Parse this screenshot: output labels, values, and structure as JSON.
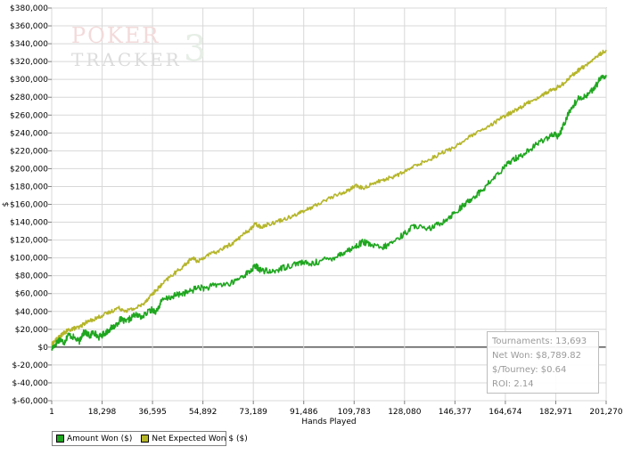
{
  "watermark": {
    "line1": "POKER",
    "line2": "TRACKER",
    "version": "3"
  },
  "stats": {
    "tournaments": "Tournaments: 13,693",
    "net_won": "Net Won: $8,789.82",
    "per_tourney": "$/Tourney: $0.64",
    "roi": "ROI: 2.14"
  },
  "legend": {
    "amount_won": "Amount Won ($)",
    "net_expected": "Net Expected Won $ ($)"
  },
  "colors": {
    "amount_won": "#1fa61f",
    "net_expected": "#b5b52a",
    "grid": "#d8d8d8",
    "zero_line": "#000000"
  },
  "chart_data": {
    "type": "line",
    "title": "",
    "xlabel": "Hands Played",
    "ylabel": "$",
    "xlim": [
      1,
      201270
    ],
    "ylim": [
      -60000,
      380000
    ],
    "x_ticks": [
      1,
      18298,
      36595,
      54892,
      73189,
      91486,
      109783,
      128080,
      146377,
      164674,
      182971,
      201270
    ],
    "x_tick_labels": [
      "1",
      "18,298",
      "36,595",
      "54,892",
      "73,189",
      "91,486",
      "109,783",
      "128,080",
      "146,377",
      "164,674",
      "182,971",
      "201,270"
    ],
    "y_ticks": [
      -60000,
      -40000,
      -20000,
      0,
      20000,
      40000,
      60000,
      80000,
      100000,
      120000,
      140000,
      160000,
      180000,
      200000,
      220000,
      240000,
      260000,
      280000,
      300000,
      320000,
      340000,
      360000,
      380000
    ],
    "y_tick_labels": [
      "$-60,000",
      "$-40,000",
      "$-20,000",
      "$0",
      "$20,000",
      "$40,000",
      "$60,000",
      "$80,000",
      "$100,000",
      "$120,000",
      "$140,000",
      "$160,000",
      "$180,000",
      "$200,000",
      "$220,000",
      "$240,000",
      "$260,000",
      "$280,000",
      "$300,000",
      "$320,000",
      "$340,000",
      "$360,000",
      "$380,000"
    ],
    "grid": true,
    "legend_position": "bottom-left",
    "series": [
      {
        "name": "Amount Won ($)",
        "color": "#1fa61f",
        "x": [
          1,
          1500,
          3000,
          4500,
          6000,
          8000,
          10000,
          11000,
          12000,
          14000,
          15000,
          17000,
          19000,
          21000,
          23000,
          25000,
          27000,
          30000,
          33000,
          36000,
          38000,
          40000,
          44000,
          47000,
          50000,
          53000,
          56000,
          60000,
          65000,
          69000,
          72000,
          74000,
          76000,
          80000,
          83000,
          86000,
          90000,
          94000,
          98000,
          102000,
          106000,
          110000,
          113000,
          116000,
          120000,
          124000,
          128000,
          132000,
          136000,
          140000,
          144000,
          148000,
          150000,
          153000,
          156000,
          160000,
          164000,
          167000,
          170000,
          174000,
          178000,
          182000,
          184000,
          186000,
          188000,
          191000,
          194000,
          197000,
          199000,
          201270
        ],
        "y": [
          -2000,
          4000,
          9000,
          5000,
          14000,
          11000,
          6000,
          14000,
          17000,
          12000,
          18000,
          11000,
          15000,
          20000,
          24000,
          31000,
          28000,
          36000,
          34000,
          42000,
          40000,
          52000,
          57000,
          60000,
          62000,
          67000,
          66000,
          70000,
          71000,
          79000,
          85000,
          91000,
          86000,
          84000,
          88000,
          91000,
          95000,
          93000,
          97000,
          100000,
          106000,
          112000,
          118000,
          114000,
          111000,
          118000,
          127000,
          137000,
          131000,
          137000,
          145000,
          155000,
          160000,
          168000,
          175000,
          188000,
          200000,
          210000,
          214000,
          222000,
          232000,
          238000,
          236000,
          250000,
          265000,
          278000,
          282000,
          290000,
          300000,
          305000
        ]
      },
      {
        "name": "Net Expected Won $ ($)",
        "color": "#b5b52a",
        "x": [
          1,
          1500,
          3000,
          4500,
          6000,
          8000,
          10000,
          12000,
          15000,
          18000,
          21000,
          24000,
          27000,
          30000,
          33000,
          36000,
          38000,
          40000,
          43000,
          46000,
          49000,
          51000,
          53000,
          56000,
          60000,
          63000,
          66000,
          69000,
          72000,
          74000,
          76000,
          80000,
          84000,
          88000,
          92000,
          96000,
          100000,
          104000,
          108000,
          110000,
          113000,
          117000,
          121000,
          125000,
          129000,
          133000,
          137000,
          141000,
          145000,
          149000,
          153000,
          157000,
          161000,
          165000,
          168000,
          171000,
          174000,
          177000,
          180000,
          183000,
          186000,
          189000,
          192000,
          195000,
          198000,
          201270
        ],
        "y": [
          3000,
          8000,
          12000,
          16000,
          19000,
          21000,
          22000,
          27000,
          31000,
          35000,
          39000,
          44000,
          41000,
          43000,
          48000,
          58000,
          64000,
          70000,
          79000,
          86000,
          94000,
          100000,
          96000,
          102000,
          107000,
          112000,
          117000,
          125000,
          132000,
          138000,
          135000,
          139000,
          143000,
          148000,
          153000,
          159000,
          166000,
          171000,
          176000,
          181000,
          178000,
          184000,
          188000,
          192000,
          198000,
          205000,
          210000,
          217000,
          222000,
          230000,
          238000,
          244000,
          252000,
          260000,
          265000,
          270000,
          276000,
          280000,
          286000,
          290000,
          296000,
          305000,
          312000,
          318000,
          326000,
          333000
        ]
      }
    ]
  }
}
